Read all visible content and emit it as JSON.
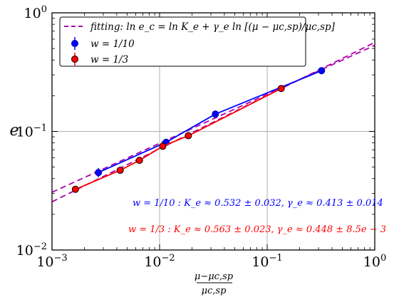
{
  "chart_data": {
    "type": "line",
    "x_scale": "log",
    "y_scale": "log",
    "xlim": [
      0.001,
      1
    ],
    "ylim": [
      0.01,
      1
    ],
    "grid": true,
    "xlabel_numerator": "μ−μc,sp",
    "xlabel_denominator": "μc,sp",
    "ylabel": "e",
    "x_ticks": [
      {
        "value": 0.001,
        "base": "10",
        "exp": "−3"
      },
      {
        "value": 0.01,
        "base": "10",
        "exp": "−2"
      },
      {
        "value": 0.1,
        "base": "10",
        "exp": "−1"
      },
      {
        "value": 1,
        "base": "10",
        "exp": "0"
      }
    ],
    "y_ticks": [
      {
        "value": 0.01,
        "base": "10",
        "exp": "−2"
      },
      {
        "value": 0.1,
        "base": "10",
        "exp": "−1"
      },
      {
        "value": 1,
        "base": "10",
        "exp": "0"
      }
    ],
    "legend_position": "top-left",
    "legend": {
      "fit_label": "fitting: ln e_c = ln K_e + γ_e ln [(μ − μc,sp)/μc,sp]",
      "series_labels": [
        "w = 1/10",
        "w = 1/3"
      ]
    },
    "series": [
      {
        "name": "w = 1/10",
        "color": "#0000ff",
        "x": [
          0.0027,
          0.0115,
          0.033,
          0.32
        ],
        "y": [
          0.045,
          0.081,
          0.14,
          0.325
        ],
        "yerr": [
          0.004,
          0.003,
          0.005,
          0.012
        ],
        "fit": {
          "K": 0.532,
          "gamma": 0.413,
          "color": "#aa00aa"
        }
      },
      {
        "name": "w = 1/3",
        "color": "#ff0000",
        "x": [
          0.00165,
          0.0043,
          0.0065,
          0.0107,
          0.0185,
          0.135
        ],
        "y": [
          0.0325,
          0.047,
          0.057,
          0.075,
          0.092,
          0.23
        ],
        "yerr": [
          0.0015,
          0.0015,
          0.002,
          0.002,
          0.002,
          0.006
        ],
        "fit": {
          "K": 0.563,
          "gamma": 0.448,
          "color": "#aa00aa"
        }
      }
    ],
    "annotations": [
      {
        "text": "w = 1/10 : K_e ≈ 0.532 ± 0.032,  γ_e ≈ 0.413 ± 0.014",
        "color": "#0000ff"
      },
      {
        "text": "w = 1/3 : K_e ≈ 0.563 ± 0.023,  γ_e ≈ 0.448 ± 8.5e − 3",
        "color": "#ff0000"
      }
    ]
  }
}
